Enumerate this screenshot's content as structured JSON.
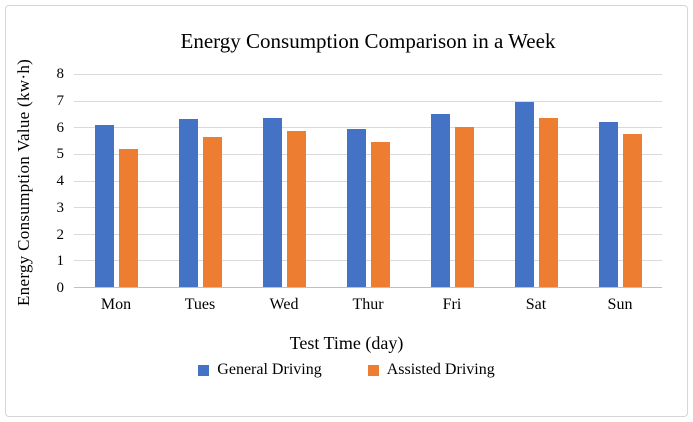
{
  "figure": {
    "frame_border_color": "#d6d6d6",
    "background_color": "#ffffff"
  },
  "chart_data": {
    "type": "bar",
    "title": "Energy Consumption Comparison in a Week",
    "xlabel": "Test Time (day)",
    "ylabel": "Energy Consumption Value (kw·h)",
    "categories": [
      "Mon",
      "Tues",
      "Wed",
      "Thur",
      "Fri",
      "Sat",
      "Sun"
    ],
    "series": [
      {
        "name": "General Driving",
        "color": "#4472C4",
        "values": [
          6.1,
          6.3,
          6.35,
          5.95,
          6.5,
          6.95,
          6.2
        ]
      },
      {
        "name": "Assisted Driving",
        "color": "#ED7D31",
        "values": [
          5.2,
          5.65,
          5.85,
          5.45,
          6.0,
          6.35,
          5.75
        ]
      }
    ],
    "ylim": [
      0,
      8
    ],
    "yticks": [
      0,
      1,
      2,
      3,
      4,
      5,
      6,
      7,
      8
    ],
    "grid": "horizontal",
    "gridline_color": "#d9d9d9",
    "axis_line_color": "#bfbfbf",
    "legend_position": "bottom"
  }
}
